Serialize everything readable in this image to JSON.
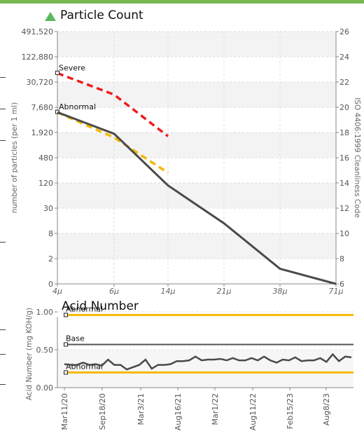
{
  "chart_data": [
    {
      "type": "line",
      "title": "Particle Count",
      "ylabel": "number of particles (per 1 ml)",
      "y2label": "ISO 4406:1999 Cleanliness Code",
      "x_ticks": [
        "4μ",
        "6μ",
        "14μ",
        "21μ",
        "38μ",
        "71μ"
      ],
      "y_ticks": [
        "0",
        "2",
        "8",
        "30",
        "120",
        "480",
        "1,920",
        "7,680",
        "30,720",
        "122,880",
        "491,520"
      ],
      "y2_ticks": [
        "6",
        "8",
        "10",
        "12",
        "14",
        "16",
        "18",
        "20",
        "22",
        "24",
        "26"
      ],
      "y_range_code": [
        6,
        26
      ],
      "grid": true,
      "series": [
        {
          "name": "Severe",
          "color": "#ee1c1c",
          "style": "dashed",
          "x": [
            "4μ",
            "6μ",
            "14μ"
          ],
          "code": [
            22.7,
            21.0,
            17.7
          ]
        },
        {
          "name": "Abnormal",
          "color": "#f5b800",
          "style": "dashed",
          "x": [
            "4μ",
            "6μ",
            "14μ"
          ],
          "code": [
            19.6,
            17.6,
            14.8
          ]
        },
        {
          "name": "",
          "color": "#4a4a4a",
          "style": "solid",
          "x": [
            "4μ",
            "6μ",
            "14μ",
            "21μ",
            "38μ",
            "71μ"
          ],
          "code": [
            19.6,
            17.9,
            13.8,
            10.8,
            7.2,
            6.0
          ]
        }
      ]
    },
    {
      "type": "line",
      "title": "Acid Number",
      "ylabel": "Acid Number (mg KOH/g)",
      "y_ticks": [
        "0.00",
        "0.50",
        "1.00"
      ],
      "ylim": [
        0,
        1.0
      ],
      "x_ticks": [
        "Mar11/20",
        "Sep18/20",
        "Mar3/21",
        "Aug16/21",
        "Mar1/22",
        "Aug11/22",
        "Feb15/23",
        "Aug8/23"
      ],
      "grid": true,
      "reference_lines": [
        {
          "name": "Abnormal",
          "value": 0.96,
          "color": "#f5b800"
        },
        {
          "name": "Base",
          "value": 0.57,
          "color": "#555555"
        },
        {
          "name": "Abnormal",
          "value": 0.2,
          "color": "#f5b800"
        }
      ],
      "series": [
        {
          "name": "",
          "color": "#4a4a4a",
          "values": [
            0.31,
            0.3,
            0.3,
            0.33,
            0.3,
            0.31,
            0.29,
            0.37,
            0.3,
            0.3,
            0.24,
            0.27,
            0.3,
            0.37,
            0.25,
            0.3,
            0.3,
            0.31,
            0.35,
            0.35,
            0.36,
            0.41,
            0.36,
            0.37,
            0.37,
            0.38,
            0.36,
            0.39,
            0.36,
            0.36,
            0.39,
            0.36,
            0.41,
            0.36,
            0.33,
            0.37,
            0.36,
            0.4,
            0.35,
            0.36,
            0.36,
            0.39,
            0.34,
            0.44,
            0.35,
            0.41,
            0.4
          ]
        }
      ]
    }
  ]
}
